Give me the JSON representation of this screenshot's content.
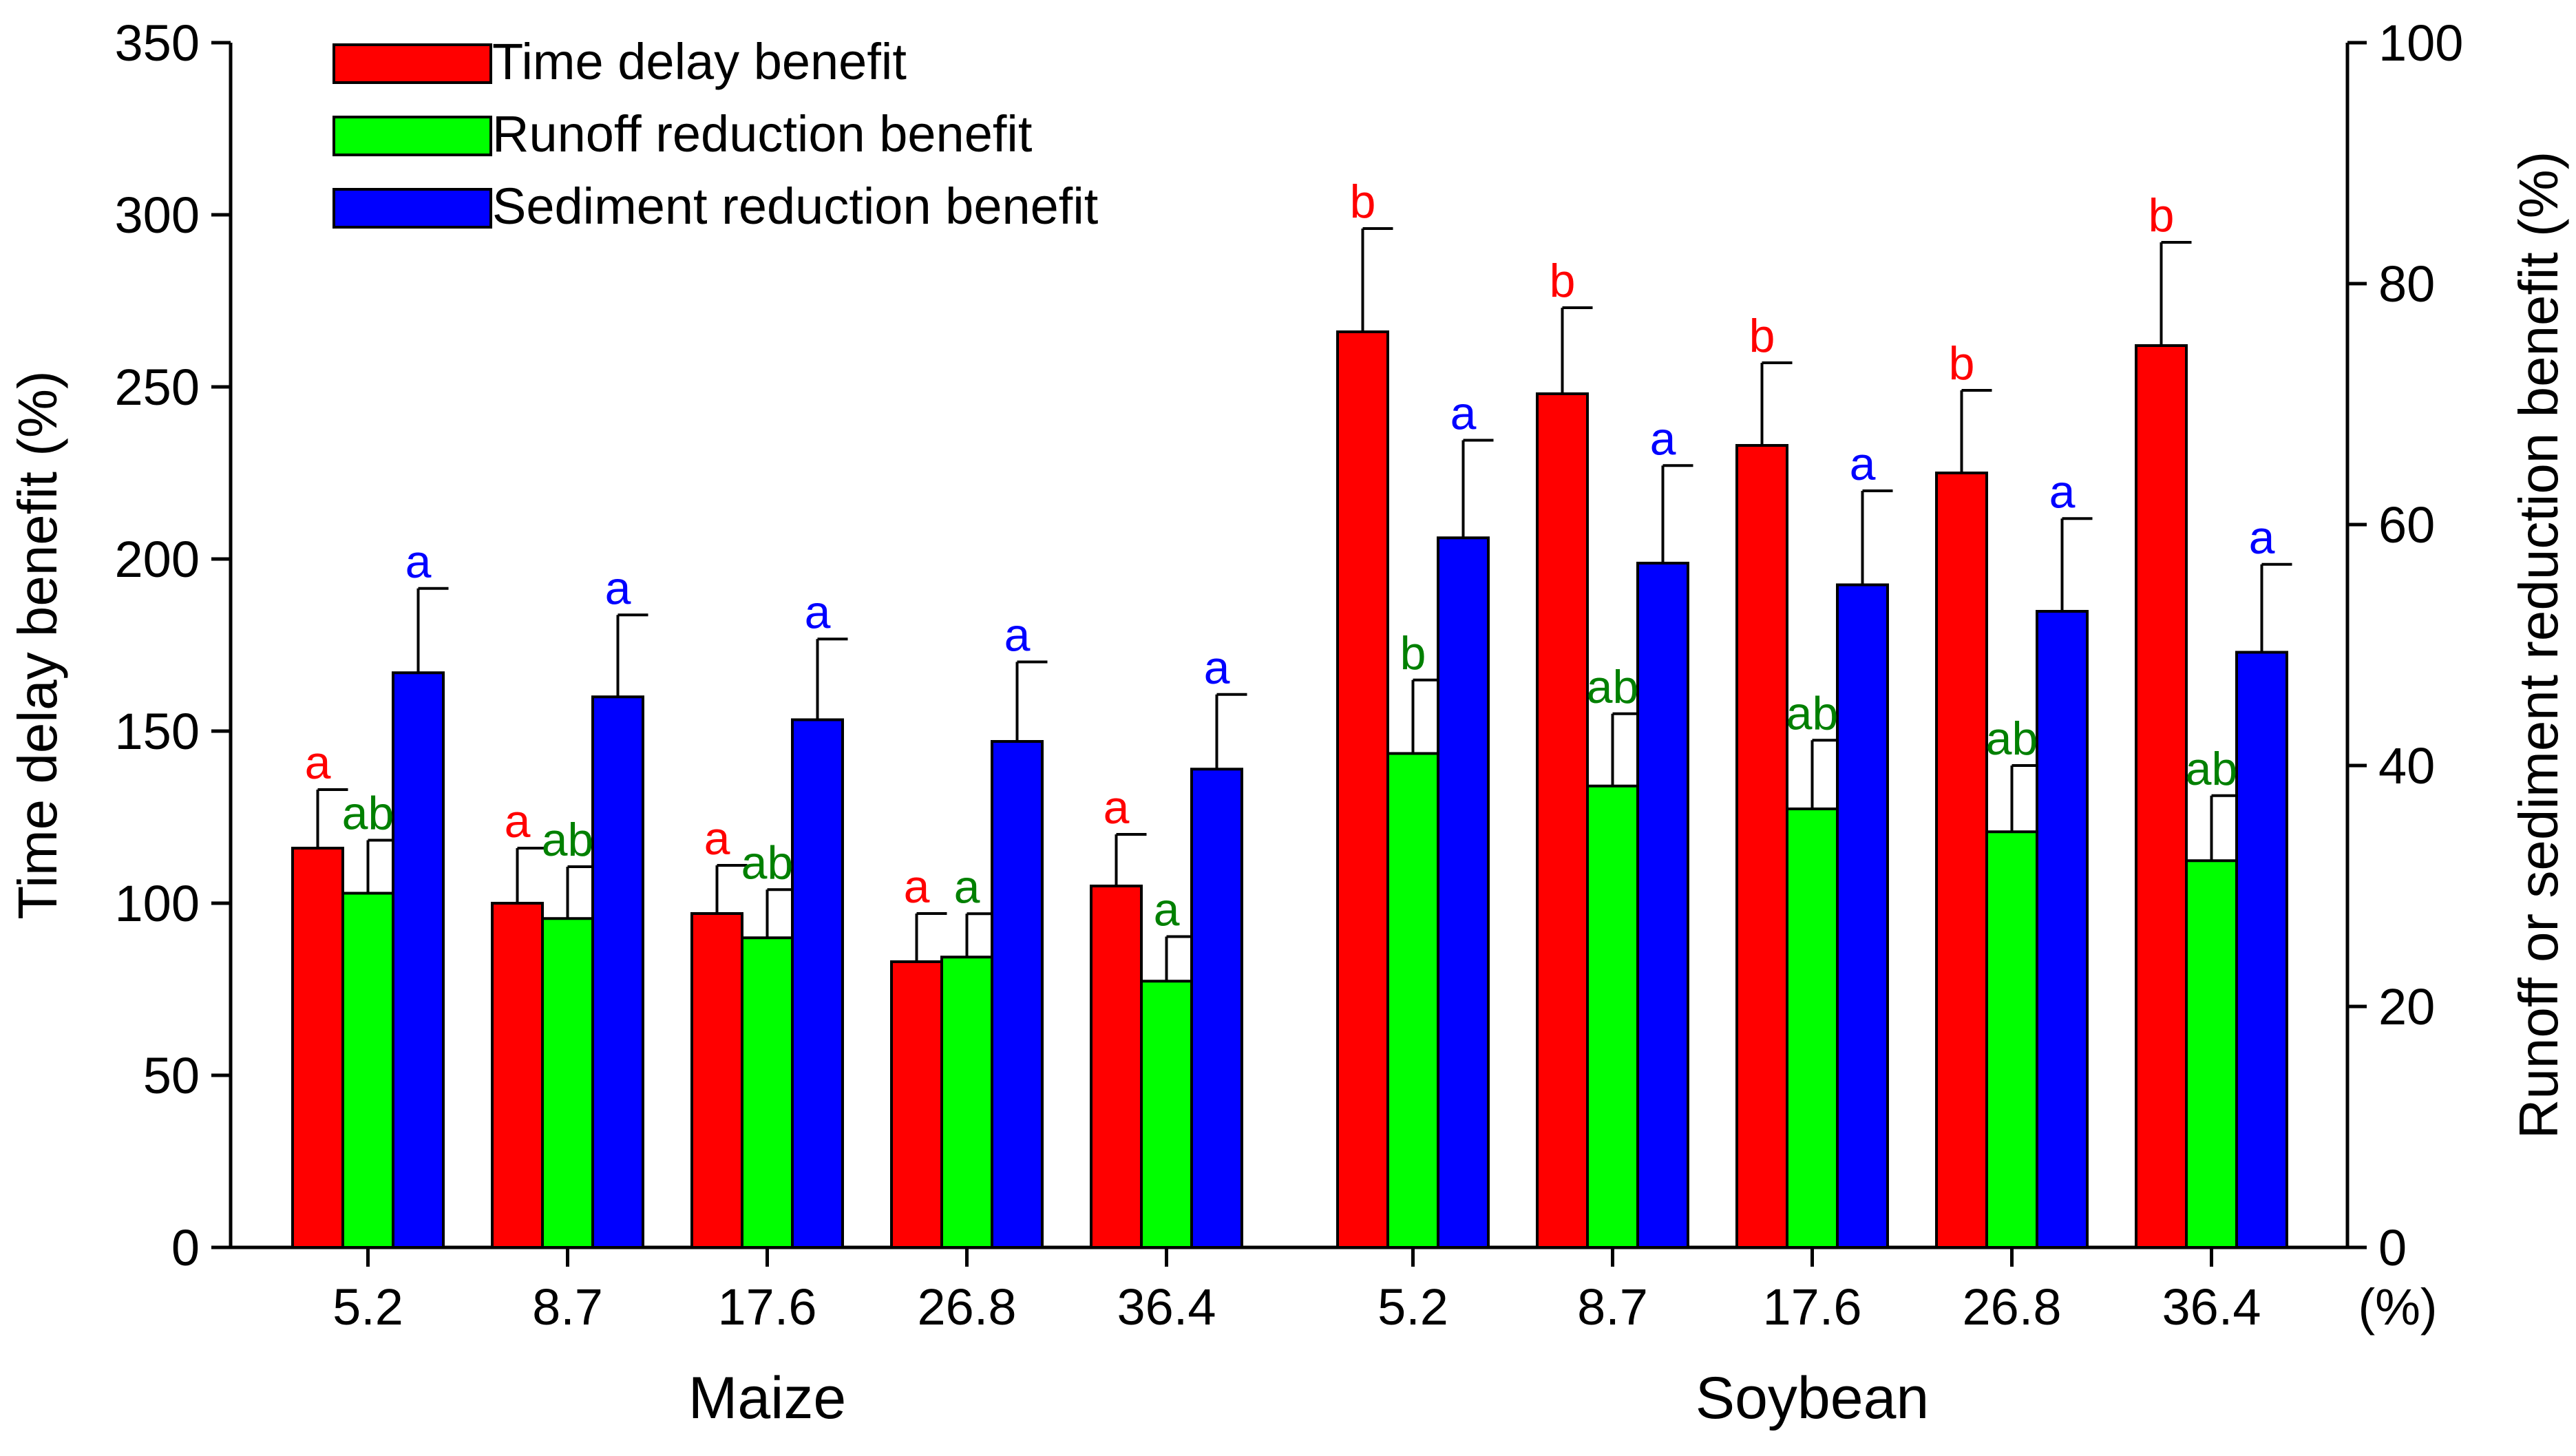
{
  "chart_data": {
    "type": "bar",
    "groups": [
      {
        "label": "Maize",
        "categories": [
          "5.2",
          "8.7",
          "17.6",
          "26.8",
          "36.4"
        ]
      },
      {
        "label": "Soybean",
        "categories": [
          "5.2",
          "8.7",
          "17.6",
          "26.8",
          "36.4"
        ]
      }
    ],
    "x_unit_label": "(%)",
    "series": [
      {
        "name": "Time delay benefit",
        "axis": "left",
        "color": "#ff0000",
        "label_color": "#ff0000",
        "values": [
          116,
          100,
          97,
          83,
          105,
          266,
          248,
          233,
          225,
          262
        ],
        "errors": [
          17,
          16,
          14,
          14,
          15,
          30,
          25,
          24,
          24,
          30
        ],
        "labels": [
          "a",
          "a",
          "a",
          "a",
          "a",
          "b",
          "b",
          "b",
          "b",
          "b"
        ]
      },
      {
        "name": "Runoff reduction benefit",
        "axis": "right",
        "color": "#00ff00",
        "label_color": "#008000",
        "values": [
          29.4,
          27.3,
          25.7,
          24.1,
          22.1,
          41.0,
          38.3,
          36.4,
          34.5,
          32.1
        ],
        "errors": [
          4.4,
          4.3,
          4.0,
          3.6,
          3.7,
          6.1,
          6.0,
          5.7,
          5.5,
          5.4
        ],
        "labels": [
          "ab",
          "ab",
          "ab",
          "a",
          "a",
          "b",
          "ab",
          "ab",
          "ab",
          "ab"
        ]
      },
      {
        "name": "Sediment reduction benefit",
        "axis": "right",
        "color": "#0000ff",
        "label_color": "#0000ff",
        "values": [
          47.7,
          45.7,
          43.8,
          42.0,
          39.7,
          58.9,
          56.8,
          55.0,
          52.8,
          49.4
        ],
        "errors": [
          7.0,
          6.8,
          6.7,
          6.6,
          6.2,
          8.1,
          8.1,
          7.8,
          7.7,
          7.3
        ],
        "labels": [
          "a",
          "a",
          "a",
          "a",
          "a",
          "a",
          "a",
          "a",
          "a",
          "a"
        ]
      }
    ],
    "ylabel_left": "Time delay benefit (%)",
    "ylim_left": [
      0,
      350
    ],
    "yticks_left": [
      0,
      50,
      100,
      150,
      200,
      250,
      300,
      350
    ],
    "ylabel_right": "Runoff or sediment reduction benefit (%)",
    "ylim_right": [
      0,
      100
    ],
    "yticks_right": [
      0,
      20,
      40,
      60,
      80,
      100
    ],
    "legend_position": "top-left",
    "grid": false
  }
}
